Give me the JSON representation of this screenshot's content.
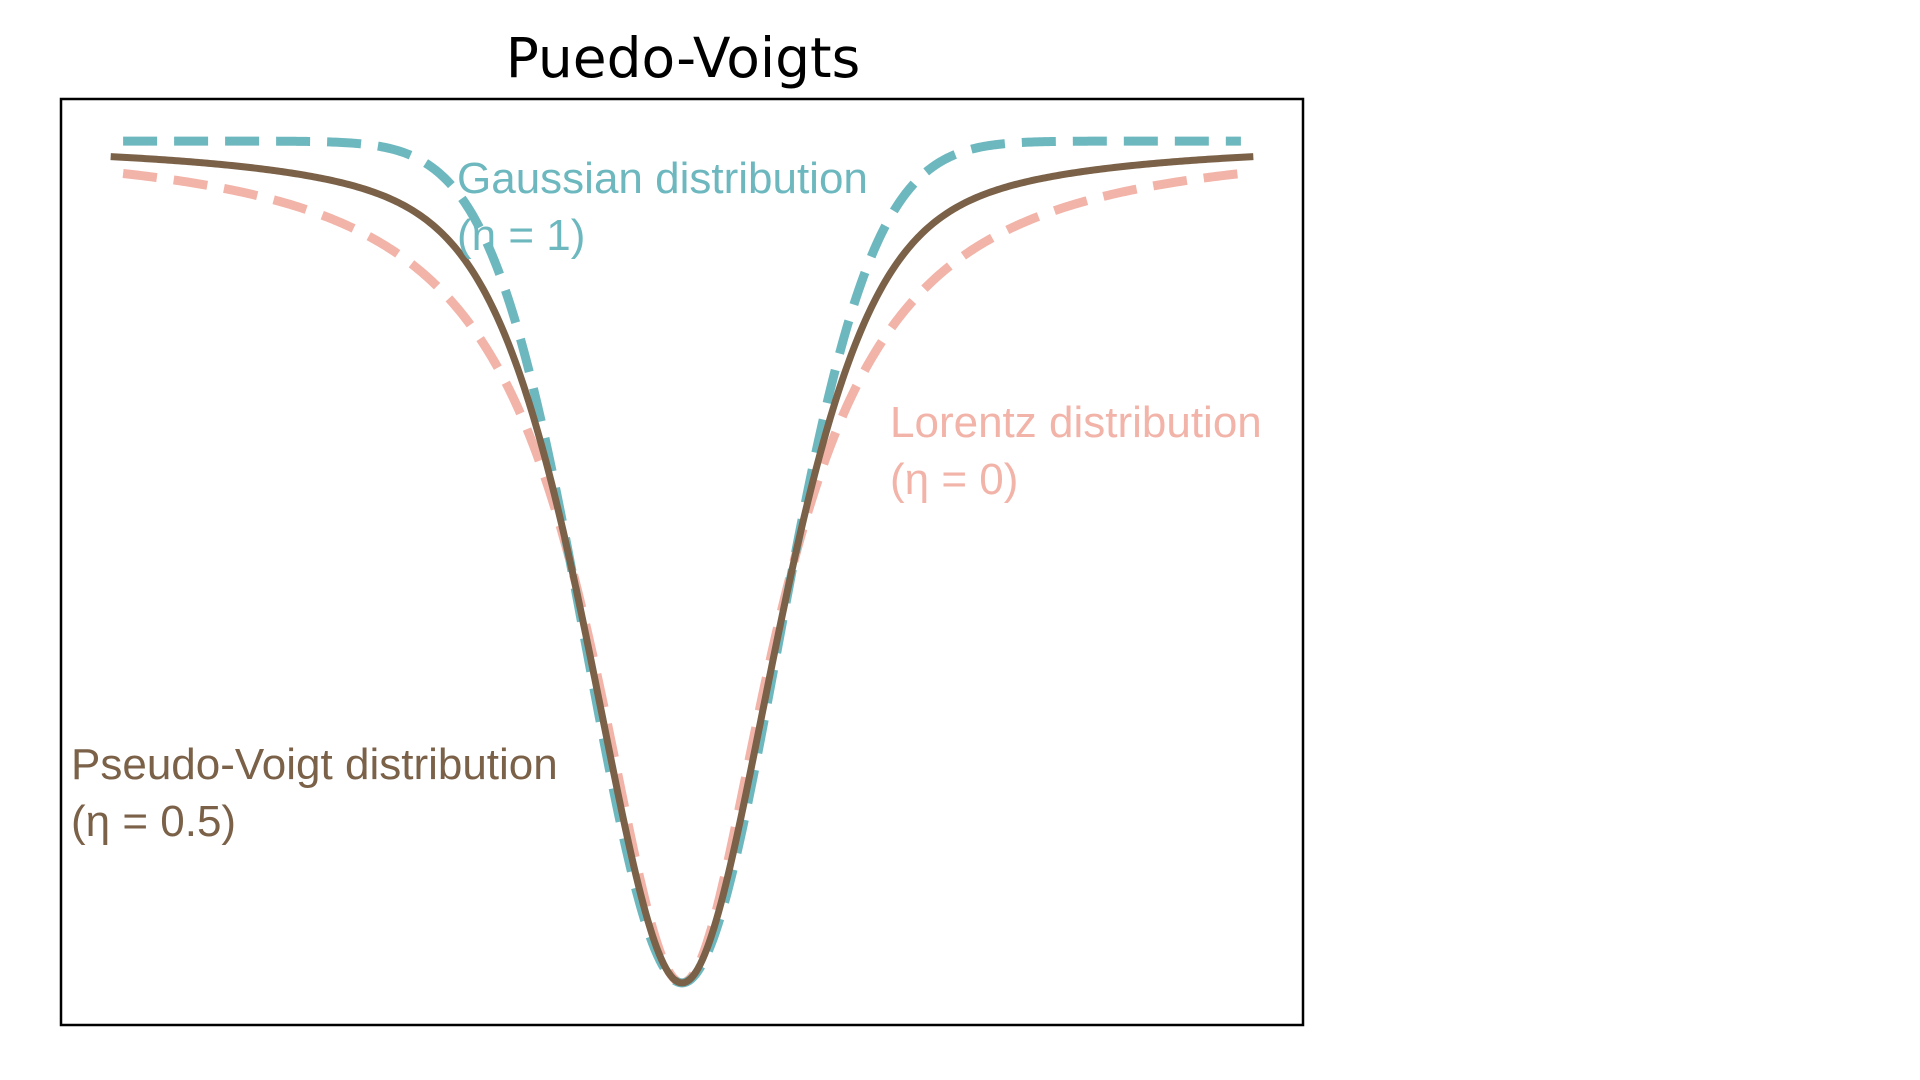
{
  "chart_data": {
    "type": "line",
    "title": "Puedo-Voigts",
    "xlabel": "",
    "ylabel": "",
    "xlim": [
      -5,
      5
    ],
    "ylim": [
      -1.05,
      0.05
    ],
    "grid": false,
    "axes_ticks": false,
    "series": [
      {
        "key": "gaussian",
        "color": "#6db8bf",
        "dash": "dashed",
        "annotation": [
          "Gaussian distribution",
          "(η = 1)"
        ]
      },
      {
        "key": "lorentz",
        "color": "#f2b3a8",
        "dash": "dashed",
        "annotation": [
          "Lorentz distribution",
          "(η = 0)"
        ]
      },
      {
        "key": "pseudo_voigt",
        "color": "#7a6148",
        "dash": "solid",
        "annotation": [
          "Pseudo-Voigt distribution",
          "(η = 0.5)"
        ]
      }
    ]
  }
}
